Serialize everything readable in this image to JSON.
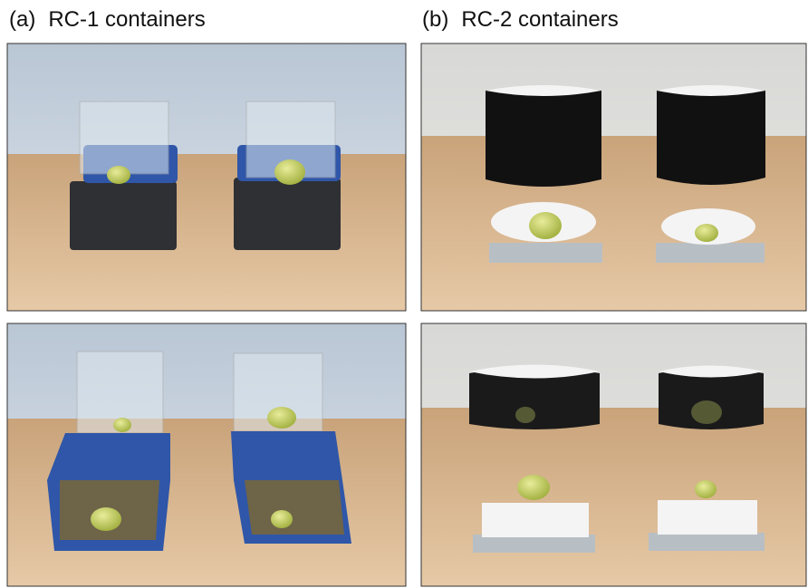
{
  "panels": [
    {
      "label": "(a)",
      "title": "RC-1 containers"
    },
    {
      "label": "(b)",
      "title": "RC-2 containers"
    }
  ]
}
